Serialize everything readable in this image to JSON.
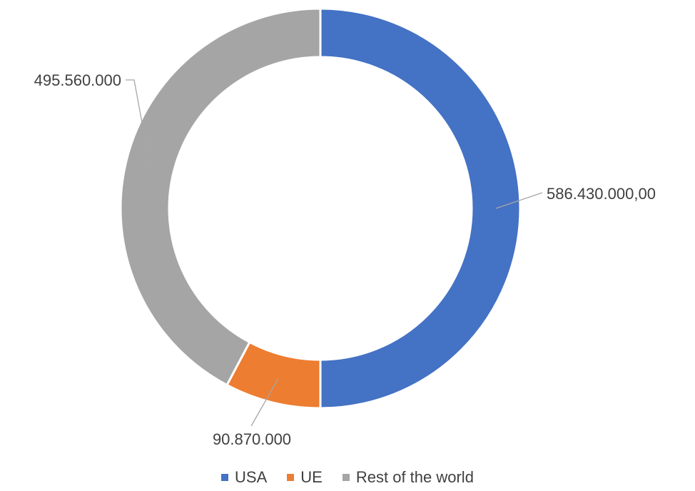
{
  "chart_data": {
    "type": "pie",
    "donut": true,
    "title": "",
    "categories": [
      "USA",
      "UE",
      "Rest of the world"
    ],
    "values": [
      586430000,
      90870000,
      495560000
    ],
    "labels": [
      "586.430.000,00",
      "90.870.000",
      "495.560.000"
    ],
    "colors": [
      "#4472C4",
      "#ED7D31",
      "#A5A5A5"
    ],
    "start_angle": "12 o'clock",
    "direction": "clockwise",
    "legend_position": "bottom"
  }
}
